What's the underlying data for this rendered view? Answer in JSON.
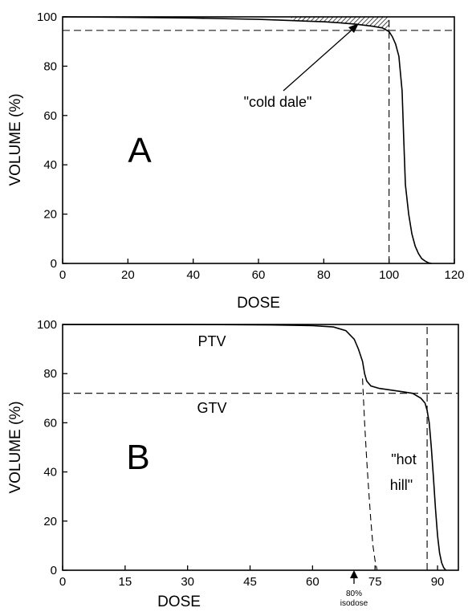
{
  "chart_data": [
    {
      "type": "line",
      "panel": "A",
      "xlabel": "DOSE",
      "ylabel": "VOLUME (%)",
      "xlim": [
        0,
        120
      ],
      "ylim": [
        0,
        100
      ],
      "xticks": [
        0,
        20,
        40,
        60,
        80,
        100,
        120
      ],
      "yticks": [
        0,
        20,
        40,
        60,
        80,
        100
      ],
      "grid": false,
      "series": [
        {
          "style": "solid",
          "x": [
            0,
            20,
            40,
            60,
            70,
            80,
            85,
            90,
            95,
            98,
            100,
            101,
            102,
            103,
            104,
            104.5,
            105,
            106,
            107,
            108,
            109,
            110,
            111,
            112,
            113
          ],
          "y": [
            100,
            99.8,
            99.5,
            99,
            98.5,
            98,
            97.6,
            97,
            96.2,
            95.5,
            94,
            92,
            89,
            84,
            70,
            50,
            32,
            20,
            12,
            7,
            4,
            2,
            1,
            0.3,
            0
          ]
        }
      ],
      "reference_lines": [
        {
          "orientation": "horizontal",
          "value": 94.5,
          "style": "dashed"
        },
        {
          "orientation": "vertical",
          "value": 100,
          "style": "dashed"
        }
      ],
      "annotations": [
        "\"cold dale\"",
        "A"
      ]
    },
    {
      "type": "line",
      "panel": "B",
      "xlabel": "DOSE",
      "ylabel": "VOLUME (%)",
      "xlim": [
        0,
        95
      ],
      "ylim": [
        0,
        100
      ],
      "xticks": [
        0,
        15,
        30,
        45,
        60,
        75,
        90
      ],
      "yticks": [
        0,
        20,
        40,
        60,
        80,
        100
      ],
      "grid": false,
      "series": [
        {
          "name": "PTV",
          "style": "solid",
          "x": [
            0,
            30,
            50,
            60,
            65,
            68,
            70,
            71,
            72,
            72.5,
            73,
            74,
            76,
            78,
            80,
            82,
            84,
            86,
            87,
            87.5,
            88,
            88.5,
            89,
            89.5,
            90,
            90.5,
            91,
            91.5,
            92
          ],
          "y": [
            100,
            100,
            99.8,
            99.5,
            99,
            97.5,
            94,
            90,
            85,
            80,
            77,
            75,
            74,
            73.5,
            73,
            72.5,
            72,
            70,
            68,
            65,
            60,
            50,
            38,
            25,
            14,
            7,
            3,
            1,
            0
          ]
        },
        {
          "name": "GTV",
          "style": "dashed",
          "x": [
            72,
            72.5,
            73,
            73.5,
            74,
            74.5,
            75,
            75.5
          ],
          "y": [
            78,
            60,
            45,
            32,
            20,
            10,
            4,
            0
          ]
        }
      ],
      "reference_lines": [
        {
          "orientation": "horizontal",
          "value": 72,
          "style": "dashed"
        },
        {
          "orientation": "vertical",
          "value": 87.5,
          "style": "dashed"
        }
      ],
      "annotations": [
        "PTV",
        "GTV",
        "\"hot",
        "hill\"",
        "80%",
        "isodose",
        "B"
      ]
    }
  ],
  "panelA": {
    "xlabel": "DOSE",
    "ylabel": "VOLUME (%)",
    "letter": "A",
    "annotation": "\"cold dale\""
  },
  "panelB": {
    "xlabel": "DOSE",
    "ylabel": "VOLUME (%)",
    "letter": "B",
    "ptv_label": "PTV",
    "gtv_label": "GTV",
    "hot_line1": "\"hot",
    "hot_line2": "hill\"",
    "note_line1": "80%",
    "note_line2": "isodose"
  }
}
